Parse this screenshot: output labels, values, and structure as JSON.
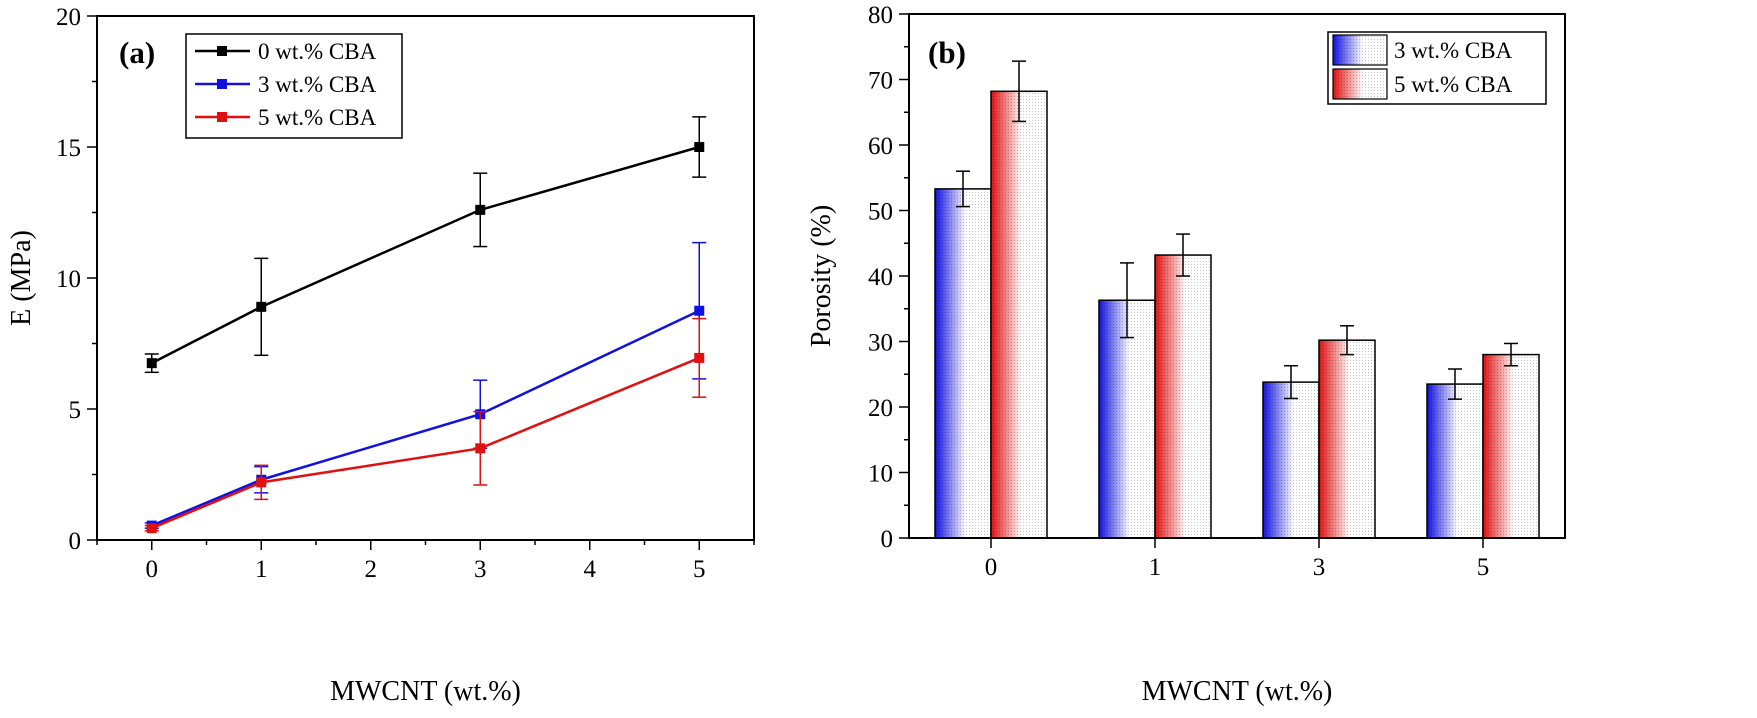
{
  "chart_data": [
    {
      "panel": "(a)",
      "type": "line",
      "xlabel": "MWCNT (wt.%)",
      "ylabel": "E (MPa)",
      "xlim": [
        -0.5,
        5.5
      ],
      "ylim": [
        0,
        20
      ],
      "xticks": [
        "0",
        "1",
        "2",
        "3",
        "4",
        "5"
      ],
      "yticks": [
        "0",
        "5",
        "10",
        "15",
        "20"
      ],
      "legend_position": "top-left",
      "series": [
        {
          "name": "0 wt.% CBA",
          "color": "#000000",
          "x": [
            0,
            1,
            3,
            5
          ],
          "y": [
            6.75,
            8.9,
            12.6,
            15.0
          ],
          "err": [
            0.35,
            1.85,
            1.4,
            1.15
          ]
        },
        {
          "name": "3 wt.% CBA",
          "color": "#1010e0",
          "x": [
            0,
            1,
            3,
            5
          ],
          "y": [
            0.55,
            2.3,
            4.8,
            8.75
          ],
          "err": [
            0.1,
            0.5,
            1.3,
            2.6
          ]
        },
        {
          "name": "5 wt.% CBA",
          "color": "#e01010",
          "x": [
            0,
            1,
            3,
            5
          ],
          "y": [
            0.45,
            2.2,
            3.5,
            6.95
          ],
          "err": [
            0.1,
            0.65,
            1.4,
            1.5
          ]
        }
      ]
    },
    {
      "panel": "(b)",
      "type": "bar",
      "xlabel": "MWCNT (wt.%)",
      "ylabel": "Porosity (%)",
      "categories": [
        "0",
        "1",
        "3",
        "5"
      ],
      "ylim": [
        0,
        80
      ],
      "yticks": [
        "0",
        "10",
        "20",
        "30",
        "40",
        "50",
        "60",
        "70",
        "80"
      ],
      "legend_position": "top-right",
      "series": [
        {
          "name": "3 wt.% CBA",
          "color": "#1010e0",
          "values": [
            53.3,
            36.3,
            23.8,
            23.5
          ],
          "err": [
            2.7,
            5.7,
            2.5,
            2.3
          ]
        },
        {
          "name": "5 wt.% CBA",
          "color": "#e01010",
          "values": [
            68.2,
            43.2,
            30.2,
            28.0
          ],
          "err": [
            4.6,
            3.2,
            2.2,
            1.7
          ]
        }
      ]
    }
  ]
}
